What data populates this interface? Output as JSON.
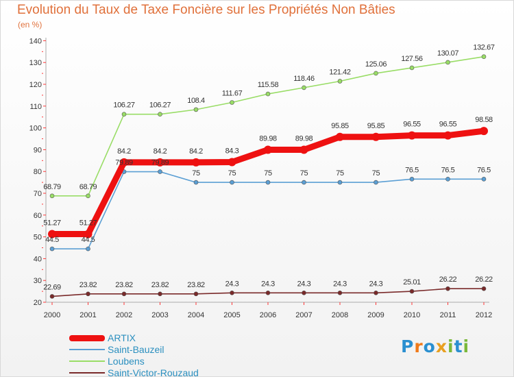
{
  "chart_data": {
    "type": "line",
    "title": "Evolution du Taux de Taxe Foncière sur les Propriétés Non Bâties",
    "ylabel": "(en %)",
    "xlabel": "",
    "ylim": [
      20,
      140
    ],
    "yticks": [
      "20",
      "30",
      "40",
      "50",
      "60",
      "70",
      "80",
      "90",
      "100",
      "110",
      "120",
      "130",
      "140"
    ],
    "categories": [
      "2000",
      "2001",
      "2002",
      "2003",
      "2004",
      "2005",
      "2006",
      "2007",
      "2008",
      "2009",
      "2010",
      "2011",
      "2012"
    ],
    "series": [
      {
        "name": "ARTIX",
        "color": "#ee1111",
        "emphasis": true,
        "values": [
          51.27,
          51.27,
          84.2,
          84.2,
          84.2,
          84.3,
          89.98,
          89.98,
          95.85,
          95.85,
          96.55,
          96.55,
          98.58
        ],
        "labels": [
          "51.27",
          "51.27",
          "84.2",
          "84.2",
          "84.2",
          "84.3",
          "89.98",
          "89.98",
          "95.85",
          "95.85",
          "96.55",
          "96.55",
          "98.58"
        ]
      },
      {
        "name": "Saint-Bauzeil",
        "color": "#5b9fd4",
        "values": [
          44.5,
          44.5,
          79.89,
          79.89,
          75,
          75,
          75,
          75,
          75,
          75,
          76.5,
          76.5,
          76.5
        ],
        "labels": [
          "44.5",
          "44.5",
          "79.89",
          "79.89",
          "75",
          "75",
          "75",
          "75",
          "75",
          "75",
          "76.5",
          "76.5",
          "76.5"
        ]
      },
      {
        "name": "Loubens",
        "color": "#99dd66",
        "values": [
          68.79,
          68.79,
          106.27,
          106.27,
          108.4,
          111.67,
          115.58,
          118.46,
          121.42,
          125.06,
          127.56,
          130.07,
          132.67
        ],
        "labels": [
          "68.79",
          "68.79",
          "106.27",
          "106.27",
          "108.4",
          "111.67",
          "115.58",
          "118.46",
          "121.42",
          "125.06",
          "127.56",
          "130.07",
          "132.67"
        ]
      },
      {
        "name": "Saint-Victor-Rouzaud",
        "color": "#7a2a2a",
        "values": [
          22.69,
          23.82,
          23.82,
          23.82,
          23.82,
          24.3,
          24.3,
          24.3,
          24.3,
          24.3,
          25.01,
          26.22,
          26.22
        ],
        "labels": [
          "22.69",
          "23.82",
          "23.82",
          "23.82",
          "23.82",
          "24.3",
          "24.3",
          "24.3",
          "24.3",
          "24.3",
          "25.01",
          "26.22",
          "26.22"
        ]
      }
    ],
    "legend_position": "bottom-left",
    "grid": false
  },
  "logo": {
    "text": "Proxiti",
    "letters": [
      {
        "ch": "P",
        "color": "#2a8fd0"
      },
      {
        "ch": "r",
        "color": "#f07a1a"
      },
      {
        "ch": "o",
        "color": "#2a8fd0"
      },
      {
        "ch": "x",
        "color": "#e8a020"
      },
      {
        "ch": "i",
        "color": "#7ab83a"
      },
      {
        "ch": "t",
        "color": "#2a8fd0"
      },
      {
        "ch": "i",
        "color": "#7ab83a"
      }
    ]
  },
  "colors": {
    "title": "#e0703a",
    "axis": "#aaaaaa",
    "axis_marks": "#ff3333",
    "legend_text": "#2a8fbf"
  }
}
